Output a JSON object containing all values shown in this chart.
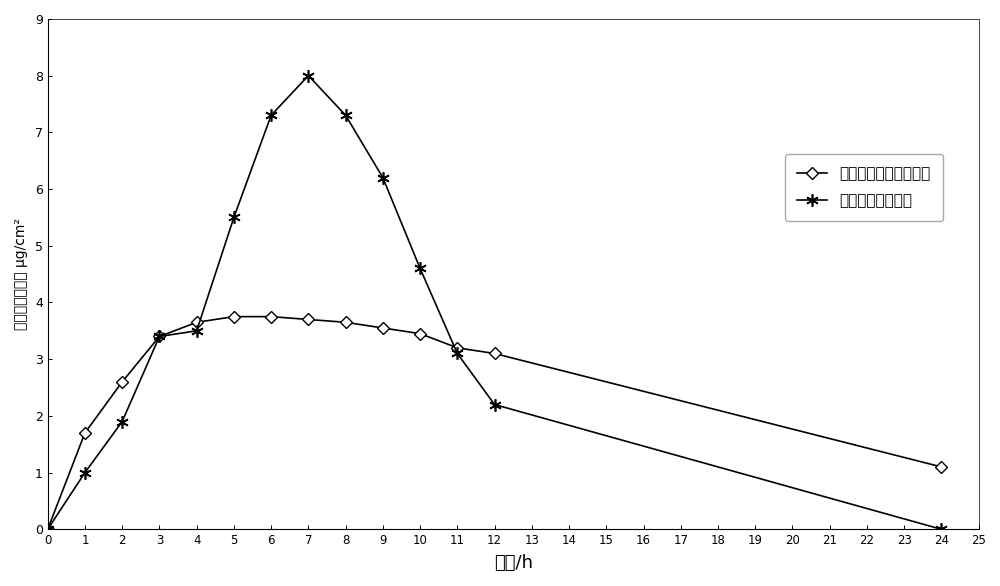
{
  "series1_label": "硝酸奥昱康咔微乳凝胶",
  "series2_label": "硝酸奥昱康咔乳膏",
  "series1_x": [
    0,
    1,
    2,
    3,
    4,
    5,
    6,
    7,
    8,
    9,
    10,
    11,
    12,
    24
  ],
  "series1_y": [
    0,
    1.7,
    2.6,
    3.4,
    3.65,
    3.75,
    3.75,
    3.7,
    3.65,
    3.55,
    3.45,
    3.2,
    3.1,
    1.1
  ],
  "series2_x": [
    0,
    1,
    2,
    3,
    4,
    5,
    6,
    7,
    8,
    9,
    10,
    11,
    12,
    24
  ],
  "series2_y": [
    0,
    1.0,
    1.9,
    3.4,
    3.5,
    5.5,
    7.3,
    8.0,
    7.3,
    6.2,
    4.6,
    3.1,
    2.2,
    0.0
  ],
  "xlabel": "时间/h",
  "ylabel": "单位面积累积量 μg/cm²",
  "xlim": [
    0,
    25
  ],
  "ylim": [
    0,
    9
  ],
  "xticks": [
    0,
    1,
    2,
    3,
    4,
    5,
    6,
    7,
    8,
    9,
    10,
    11,
    12,
    13,
    14,
    15,
    16,
    17,
    18,
    19,
    20,
    21,
    22,
    23,
    24,
    25
  ],
  "yticks": [
    0,
    1,
    2,
    3,
    4,
    5,
    6,
    7,
    8,
    9
  ],
  "line_color": "#000000",
  "background_color": "#ffffff"
}
